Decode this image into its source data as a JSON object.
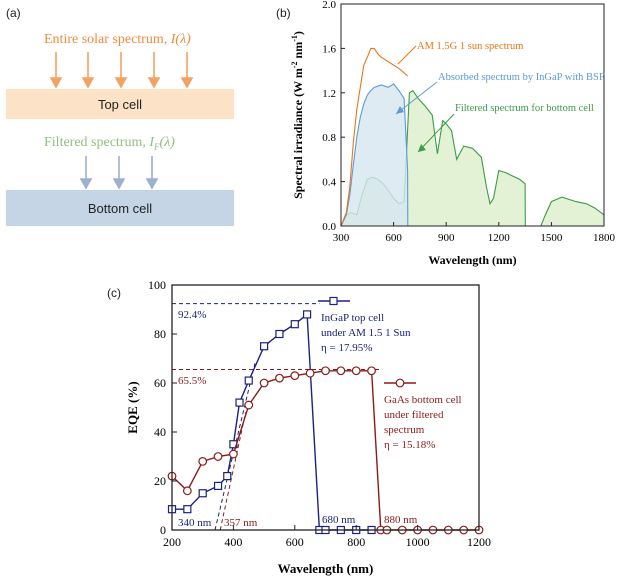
{
  "panel_a": {
    "label": "(a)",
    "solar_text": "Entire solar spectrum,",
    "solar_symbol": "I(λ)",
    "top_cell_label": "Top cell",
    "filtered_text": "Filtered spectrum,",
    "filtered_symbol": "I",
    "filtered_sub": "F",
    "filtered_arg": "(λ)",
    "bottom_cell_label": "Bottom cell",
    "colors": {
      "solar": "#f4a261",
      "top_cell": "#fce3c8",
      "filtered": "#8fbf7f",
      "bottom_cell": "#c5d5e6",
      "arrow_down2": "#9db1cf"
    }
  },
  "chart_data": [
    {
      "panel": "(b)",
      "type": "area",
      "xlabel": "Wavelength (nm)",
      "ylabel": "Spectral irradiance (W m-2 nm-1)",
      "ylabel_parts": {
        "main": "Spectral irradiance (W m",
        "sup1": "-2",
        "mid": " nm",
        "sup2": "-1",
        "end": ")"
      },
      "xlim": [
        300,
        1800
      ],
      "ylim": [
        0,
        2.0
      ],
      "xticks": [
        300,
        600,
        900,
        1200,
        1500,
        1800
      ],
      "yticks": [
        0.0,
        0.4,
        0.8,
        1.2,
        1.6,
        2.0
      ],
      "ytick_labels": [
        "0.0",
        "0.4",
        "0.8",
        "1.2",
        "1.6",
        "2.0"
      ],
      "annotations": [
        "AM 1.5G 1 sun spectrum",
        "Absorbed spectrum by InGaP with BSF",
        "Filtered spectrum for bottom cell"
      ],
      "series": [
        {
          "name": "AM 1.5G 1 sun spectrum",
          "color": "#e8751a",
          "x": [
            300,
            330,
            350,
            370,
            390,
            410,
            430,
            450,
            470,
            490,
            510,
            530,
            550,
            570,
            600,
            630,
            660,
            680
          ],
          "y": [
            0.0,
            0.12,
            0.35,
            0.75,
            1.05,
            1.25,
            1.45,
            1.52,
            1.6,
            1.6,
            1.55,
            1.52,
            1.5,
            1.48,
            1.45,
            1.42,
            1.38,
            1.35
          ]
        },
        {
          "name": "Absorbed spectrum by InGaP with BSF",
          "color": "#5b9bd5",
          "x": [
            300,
            330,
            350,
            370,
            390,
            410,
            430,
            450,
            470,
            490,
            510,
            530,
            550,
            570,
            600,
            630,
            660,
            680,
            681
          ],
          "y": [
            0.0,
            0.1,
            0.28,
            0.55,
            0.8,
            0.98,
            1.1,
            1.18,
            1.22,
            1.25,
            1.26,
            1.27,
            1.26,
            1.25,
            1.28,
            1.22,
            1.15,
            0.5,
            0.0
          ]
        },
        {
          "name": "Filtered spectrum for bottom cell",
          "color": "#3d9b48",
          "x": [
            300,
            330,
            360,
            390,
            420,
            450,
            480,
            510,
            540,
            570,
            600,
            630,
            660,
            690,
            710,
            740,
            780,
            820,
            850,
            880,
            900,
            930,
            960,
            1000,
            1050,
            1100,
            1130,
            1150,
            1170,
            1200,
            1240,
            1280,
            1320,
            1350,
            1351,
            1440,
            1460,
            1500,
            1560,
            1600,
            1640,
            1700,
            1750,
            1800
          ],
          "y": [
            0.0,
            0.1,
            0.12,
            0.1,
            0.28,
            0.42,
            0.44,
            0.42,
            0.38,
            0.32,
            0.25,
            0.2,
            0.22,
            1.2,
            1.22,
            1.15,
            1.08,
            1.0,
            0.65,
            0.95,
            0.92,
            0.86,
            0.6,
            0.72,
            0.7,
            0.62,
            0.35,
            0.2,
            0.25,
            0.5,
            0.48,
            0.45,
            0.42,
            0.38,
            0.0,
            0.0,
            0.08,
            0.22,
            0.26,
            0.24,
            0.22,
            0.2,
            0.16,
            0.1
          ]
        }
      ]
    },
    {
      "panel": "(c)",
      "type": "line",
      "xlabel": "Wavelength (nm)",
      "ylabel": "EQE (%)",
      "xlim": [
        200,
        1200
      ],
      "ylim": [
        0,
        100
      ],
      "xticks": [
        200,
        400,
        600,
        800,
        1000,
        1200
      ],
      "yticks": [
        0,
        20,
        40,
        60,
        80,
        100
      ],
      "series": [
        {
          "name": "InGaP top cell under AM 1.5 1 Sun",
          "legend_lines": [
            "InGaP top cell",
            "under AM 1.5 1 Sun",
            "η = 17.95%"
          ],
          "color": "#1a237e",
          "marker": "square",
          "x": [
            200,
            250,
            300,
            350,
            380,
            400,
            420,
            450,
            500,
            550,
            600,
            640,
            680,
            700,
            750,
            800,
            850
          ],
          "y": [
            8.5,
            8.5,
            15,
            18,
            22,
            35,
            52,
            61,
            75,
            80,
            84,
            88,
            0,
            0,
            0,
            0,
            0
          ]
        },
        {
          "name": "GaAs bottom cell under filtered spectrum",
          "legend_lines": [
            "GaAs bottom cell",
            "under filtered",
            "spectrum",
            "η = 15.18%"
          ],
          "color": "#8b1a1a",
          "marker": "circle",
          "x": [
            200,
            250,
            300,
            350,
            400,
            450,
            500,
            550,
            600,
            650,
            700,
            750,
            800,
            850,
            880,
            900,
            950,
            1000,
            1050,
            1100,
            1150,
            1200
          ],
          "y": [
            22,
            16,
            28,
            30,
            31,
            51,
            60,
            62,
            63,
            64,
            65,
            65,
            65,
            65,
            0,
            0,
            0,
            0,
            0,
            0,
            0,
            0
          ]
        }
      ],
      "annotations": [
        "92.4%",
        "65.5%",
        "340 nm",
        "357 nm",
        "680 nm",
        "880 nm"
      ]
    }
  ]
}
